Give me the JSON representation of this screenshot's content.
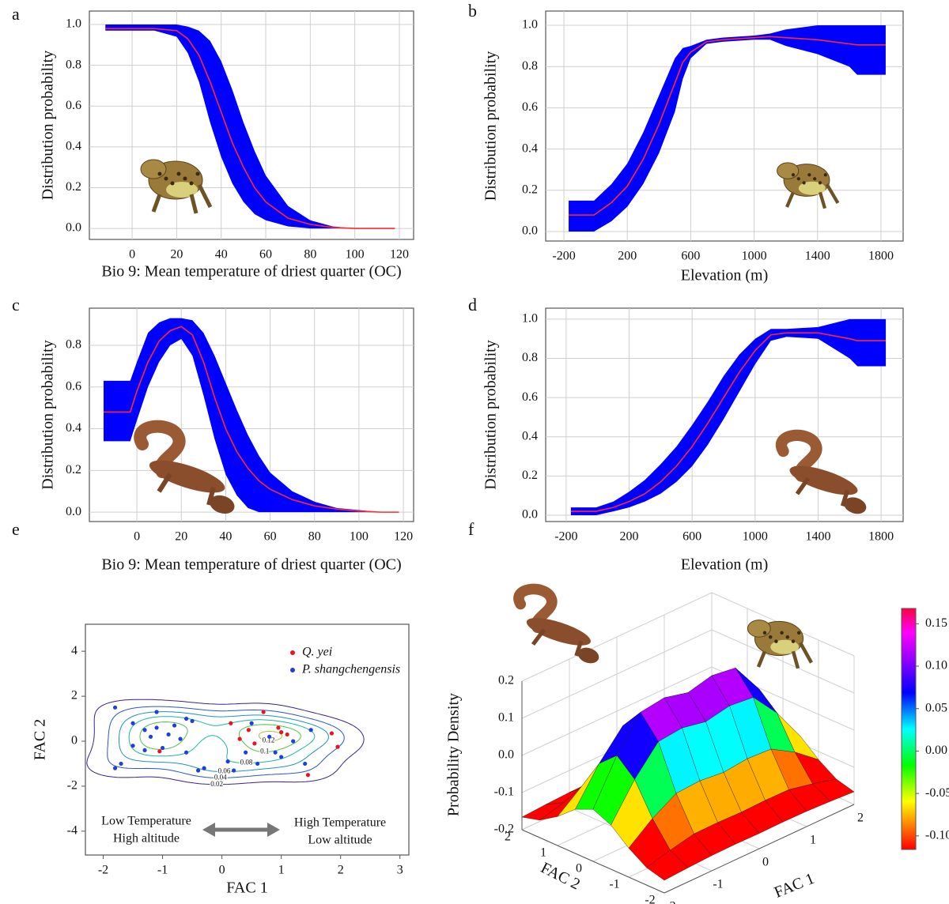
{
  "chart_data": [
    {
      "type": "band_line",
      "panel": "a",
      "ylabel": "Distribution probability",
      "xlabel": "Bio 9: Mean temperature of driest quarter (OC)",
      "x": [
        -12,
        -5,
        0,
        10,
        20,
        25,
        30,
        35,
        40,
        45,
        50,
        55,
        60,
        70,
        80,
        90,
        100,
        110,
        118
      ],
      "values": [
        0.98,
        0.98,
        0.98,
        0.98,
        0.97,
        0.93,
        0.85,
        0.72,
        0.57,
        0.42,
        0.3,
        0.2,
        0.13,
        0.05,
        0.02,
        0.005,
        0,
        0,
        0
      ],
      "upper": [
        1,
        1,
        1,
        1,
        1,
        0.99,
        0.97,
        0.92,
        0.82,
        0.68,
        0.52,
        0.38,
        0.26,
        0.11,
        0.04,
        0.01,
        0,
        0,
        0
      ],
      "lower": [
        0.97,
        0.97,
        0.97,
        0.97,
        0.94,
        0.86,
        0.72,
        0.52,
        0.35,
        0.22,
        0.13,
        0.07,
        0.04,
        0.01,
        0,
        0,
        0,
        0,
        0
      ],
      "color": "#ff2a2a",
      "band_color": "#0000ff",
      "xlim": [
        -19.2,
        126.4
      ],
      "xticks": [
        0,
        20,
        40,
        60,
        80,
        100,
        120
      ],
      "ylim": [
        -0.054,
        1.066
      ],
      "yticks": [
        {
          "value": 0,
          "label": "0.0"
        },
        0.2,
        0.4,
        0.6,
        0.8,
        {
          "value": 1,
          "label": "1.0"
        }
      ],
      "grid": true
    },
    {
      "type": "band_line",
      "panel": "b",
      "ylabel": "Distribution probability",
      "xlabel": "Elevation (m)",
      "x": [
        -170,
        -10,
        100,
        200,
        300,
        400,
        500,
        550,
        600,
        700,
        800,
        1000,
        1100,
        1200,
        1400,
        1600,
        1650,
        1830
      ],
      "values": [
        0.08,
        0.08,
        0.14,
        0.22,
        0.35,
        0.52,
        0.72,
        0.82,
        0.87,
        0.92,
        0.93,
        0.94,
        0.945,
        0.94,
        0.93,
        0.91,
        0.905,
        0.905
      ],
      "upper": [
        0.15,
        0.15,
        0.23,
        0.33,
        0.48,
        0.66,
        0.84,
        0.89,
        0.9,
        0.93,
        0.94,
        0.95,
        0.96,
        0.98,
        1,
        1,
        1,
        1
      ],
      "lower": [
        0,
        0,
        0.05,
        0.12,
        0.23,
        0.38,
        0.58,
        0.74,
        0.84,
        0.91,
        0.92,
        0.93,
        0.93,
        0.9,
        0.86,
        0.8,
        0.76,
        0.76
      ],
      "color": "#ff2a2a",
      "band_color": "#0000ff",
      "xlim": [
        -315,
        1940
      ],
      "xticks": [
        -200,
        200,
        600,
        1000,
        1400,
        1800
      ],
      "ylim": [
        -0.046,
        1.069
      ],
      "yticks": [
        {
          "value": 0,
          "label": "0.0"
        },
        0.2,
        0.4,
        0.6,
        0.8,
        {
          "value": 1,
          "label": "1.0"
        }
      ],
      "grid": true
    },
    {
      "type": "band_line",
      "panel": "c",
      "ylabel": "Distribution probability",
      "xlabel": "Bio 9: Mean temperature of driest quarter (OC)",
      "x": [
        -15,
        -3,
        0,
        5,
        10,
        15,
        20,
        25,
        30,
        35,
        40,
        45,
        50,
        55,
        60,
        70,
        80,
        90,
        100,
        110,
        118
      ],
      "values": [
        0.48,
        0.48,
        0.58,
        0.72,
        0.82,
        0.87,
        0.89,
        0.85,
        0.72,
        0.55,
        0.4,
        0.29,
        0.21,
        0.15,
        0.11,
        0.06,
        0.03,
        0.015,
        0.005,
        0,
        0
      ],
      "upper": [
        0.63,
        0.63,
        0.72,
        0.86,
        0.91,
        0.93,
        0.93,
        0.92,
        0.86,
        0.75,
        0.62,
        0.49,
        0.37,
        0.27,
        0.19,
        0.1,
        0.05,
        0.02,
        0.01,
        0,
        0
      ],
      "lower": [
        0.34,
        0.34,
        0.44,
        0.6,
        0.72,
        0.8,
        0.83,
        0.75,
        0.56,
        0.35,
        0.18,
        0.08,
        0.02,
        0,
        0,
        0,
        0,
        0,
        0,
        0,
        0
      ],
      "color": "#ff2a2a",
      "band_color": "#0000ff",
      "xlim": [
        -21.4,
        124.6
      ],
      "xticks": [
        0,
        20,
        40,
        60,
        80,
        100,
        120
      ],
      "ylim": [
        -0.045,
        0.978
      ],
      "yticks": [
        {
          "value": 0,
          "label": "0.0"
        },
        0.2,
        0.4,
        0.6,
        0.8
      ],
      "grid": true
    },
    {
      "type": "band_line",
      "panel": "d",
      "ylabel": "Distribution probability",
      "xlabel": "Elevation (m)",
      "x": [
        -170,
        -10,
        100,
        200,
        300,
        400,
        500,
        600,
        700,
        800,
        900,
        1000,
        1100,
        1200,
        1400,
        1600,
        1650,
        1830
      ],
      "values": [
        0.02,
        0.02,
        0.04,
        0.07,
        0.11,
        0.17,
        0.25,
        0.35,
        0.47,
        0.6,
        0.73,
        0.84,
        0.92,
        0.93,
        0.93,
        0.9,
        0.89,
        0.89
      ],
      "upper": [
        0.04,
        0.04,
        0.07,
        0.12,
        0.18,
        0.26,
        0.35,
        0.46,
        0.58,
        0.71,
        0.82,
        0.9,
        0.95,
        0.95,
        0.96,
        1,
        1,
        1
      ],
      "lower": [
        0,
        0,
        0.02,
        0.04,
        0.07,
        0.11,
        0.17,
        0.25,
        0.36,
        0.49,
        0.63,
        0.77,
        0.89,
        0.91,
        0.9,
        0.8,
        0.76,
        0.76
      ],
      "color": "#ff2a2a",
      "band_color": "#0000ff",
      "xlim": [
        -330,
        1940
      ],
      "xticks": [
        -200,
        200,
        600,
        1000,
        1400,
        1800
      ],
      "ylim": [
        -0.032,
        1.056
      ],
      "yticks": [
        {
          "value": 0,
          "label": "0.0"
        },
        0.2,
        0.4,
        0.6,
        0.8,
        {
          "value": 1,
          "label": "1.0"
        }
      ],
      "grid": true
    },
    {
      "type": "contour_scatter",
      "panel": "e",
      "xlabel": "FAC 1",
      "ylabel": "FAC 2",
      "series": [
        {
          "name": "Q. yei",
          "color": "#e8141e",
          "x": [
            0.3,
            0.45,
            0.7,
            0.95,
            1.0,
            1.1,
            1.45,
            1.85,
            1.95,
            0.15,
            -1.05,
            0.55
          ],
          "y": [
            0.1,
            0.5,
            1.3,
            0.6,
            0.4,
            0.3,
            -1.5,
            0.35,
            -0.25,
            0.8,
            -0.45,
            -0.1
          ]
        },
        {
          "name": "P. shangchengensis",
          "color": "#1f3fd9",
          "x": [
            -1.8,
            -1.8,
            -1.7,
            -1.1,
            -0.6,
            -1.5,
            -1.3,
            -1.2,
            -1.1,
            -0.9,
            -0.8,
            -0.5,
            -1.5,
            -1.3,
            -1.0,
            -0.7,
            -0.6,
            -0.3,
            0.2,
            0.4,
            0.5,
            0.6,
            0.8,
            0.9,
            1.0,
            1.2,
            1.4,
            1.5,
            0.1,
            -0.4
          ],
          "y": [
            1.5,
            -1.2,
            -1.0,
            1.3,
            1.0,
            0.8,
            0.5,
            0.2,
            0.6,
            0.3,
            0.7,
            0.9,
            -0.2,
            -0.4,
            -0.3,
            0.1,
            -0.5,
            -1.2,
            -1.3,
            -0.5,
            0.8,
            -1.0,
            0.2,
            -0.5,
            -0.7,
            0.0,
            -1.0,
            0.5,
            -0.9,
            -1.3
          ]
        }
      ],
      "contour_levels": [
        0.02,
        0.04,
        0.06,
        0.08,
        0.1,
        0.12,
        0.14,
        0.16
      ],
      "annotations": [
        "Low Temperature",
        "High altitude",
        "High Temperature",
        "Low altitude"
      ],
      "xlim": [
        -2.3,
        3.15
      ],
      "xticks": [
        -2,
        -1,
        0,
        1,
        2,
        3
      ],
      "ylim": [
        -5.06,
        5.2
      ],
      "yticks": [
        -4,
        -2,
        0,
        2,
        4
      ],
      "grid": false
    },
    {
      "type": "surface",
      "panel": "f",
      "xlabel": "FAC 1",
      "ylabel": "FAC 2",
      "zlabel": "Probability Density",
      "x": [
        -2,
        -1.5,
        -1,
        -0.5,
        0,
        0.5,
        1,
        1.5,
        2
      ],
      "y": [
        -2,
        -1.5,
        -1,
        -0.5,
        0,
        0.5,
        1,
        1.5,
        2
      ],
      "z": [
        [
          -0.166,
          -0.162,
          -0.159,
          -0.158,
          -0.159,
          -0.158,
          -0.159,
          -0.162,
          -0.166
        ],
        [
          -0.153,
          -0.136,
          -0.122,
          -0.121,
          -0.123,
          -0.121,
          -0.122,
          -0.136,
          -0.153
        ],
        [
          -0.122,
          -0.072,
          -0.034,
          -0.03,
          -0.037,
          -0.03,
          -0.034,
          -0.072,
          -0.122
        ],
        [
          -0.081,
          0.012,
          0.084,
          0.091,
          0.078,
          0.091,
          0.084,
          0.012,
          -0.081
        ],
        [
          -0.06,
          0.055,
          0.142,
          0.151,
          0.135,
          0.151,
          0.142,
          0.055,
          -0.06
        ],
        [
          -0.081,
          0.012,
          0.084,
          0.091,
          0.078,
          0.091,
          0.084,
          0.012,
          -0.081
        ],
        [
          -0.122,
          -0.072,
          -0.034,
          -0.03,
          -0.037,
          -0.03,
          -0.034,
          -0.072,
          -0.122
        ],
        [
          -0.153,
          -0.136,
          -0.122,
          -0.121,
          -0.123,
          -0.121,
          -0.122,
          -0.136,
          -0.153
        ],
        [
          -0.166,
          -0.162,
          -0.159,
          -0.158,
          -0.159,
          -0.158,
          -0.159,
          -0.162,
          -0.166
        ]
      ],
      "xlim": [
        -2,
        2
      ],
      "xticks": [
        -2,
        -1,
        0,
        1,
        2
      ],
      "ylim": [
        -2,
        2
      ],
      "yticks": [
        -2,
        -1,
        0,
        1,
        2
      ],
      "zlim": [
        -0.2,
        0.2
      ],
      "zticks": [
        -0.2,
        -0.1,
        {
          "value": 0,
          "label": "0.0"
        },
        0.1,
        0.2
      ],
      "clim": [
        -0.116,
        0.168
      ],
      "cticks": [
        0.15,
        {
          "value": 0.1,
          "label": "0.10"
        },
        0.05,
        {
          "value": 0,
          "label": "0.00"
        },
        -0.05,
        {
          "value": -0.1,
          "label": "-0.10"
        }
      ]
    }
  ]
}
